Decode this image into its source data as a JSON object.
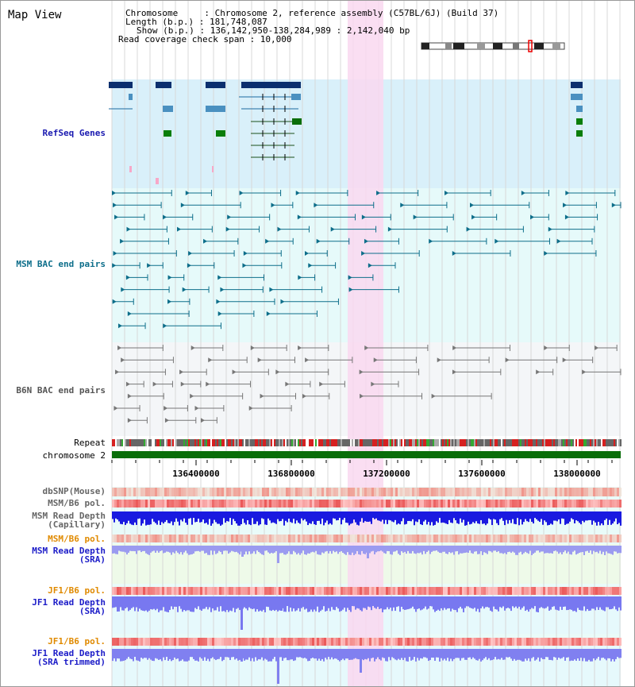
{
  "view_title": "Map View",
  "info": {
    "chromosome": "Chromosome     : Chromosome 2, reference assembly (C57BL/6J) (Build 37)",
    "length": "Length (b.p.) : 181,748,087",
    "show": "Show (b.p.) : 136,142,950-138,284,989 : 2,142,040 bp",
    "coverage": "Read coverage check span : 10,000"
  },
  "tracks": {
    "refseq": "RefSeq Genes",
    "msm_bac": "MSM BAC end pairs",
    "b6n_bac": "B6N BAC end pairs",
    "repeat": "Repeat",
    "chromosome": "chromosome 2",
    "dbsnp": "dbSNP(Mouse)",
    "msm_b6_pol": "MSM/B6 pol.",
    "msm_read_cap_1": "MSM Read Depth",
    "msm_read_cap_2": "(Capillary)",
    "msm_b6_pol_2": "MSM/B6 pol.",
    "msm_read_sra_1": "MSM Read Depth",
    "msm_read_sra_2": "(SRA)",
    "jf1_b6_pol": "JF1/B6 pol.",
    "jf1_read_sra_1": "JF1 Read Depth",
    "jf1_read_sra_2": "(SRA)",
    "jf1_b6_pol_2": "JF1/B6 pol.",
    "jf1_read_trim_1": "JF1 Read Depth",
    "jf1_read_trim_2": "(SRA trimmed)"
  },
  "axis_ticks": [
    "136400000",
    "136800000",
    "137200000",
    "137600000",
    "138000000"
  ],
  "colors": {
    "refseq_bg": "#d9f0fa",
    "msm_bg": "#e6fafa",
    "b6n_bg": "#f4f6f8",
    "highlight": "#f9d8f0",
    "refseq_label": "#1a1ab0",
    "msm_label": "#0d6e8a",
    "b6n_label": "#555555",
    "orange_label": "#e08a00",
    "blue_label": "#1c1cc8",
    "chrom_green": "#0a6e0a"
  }
}
